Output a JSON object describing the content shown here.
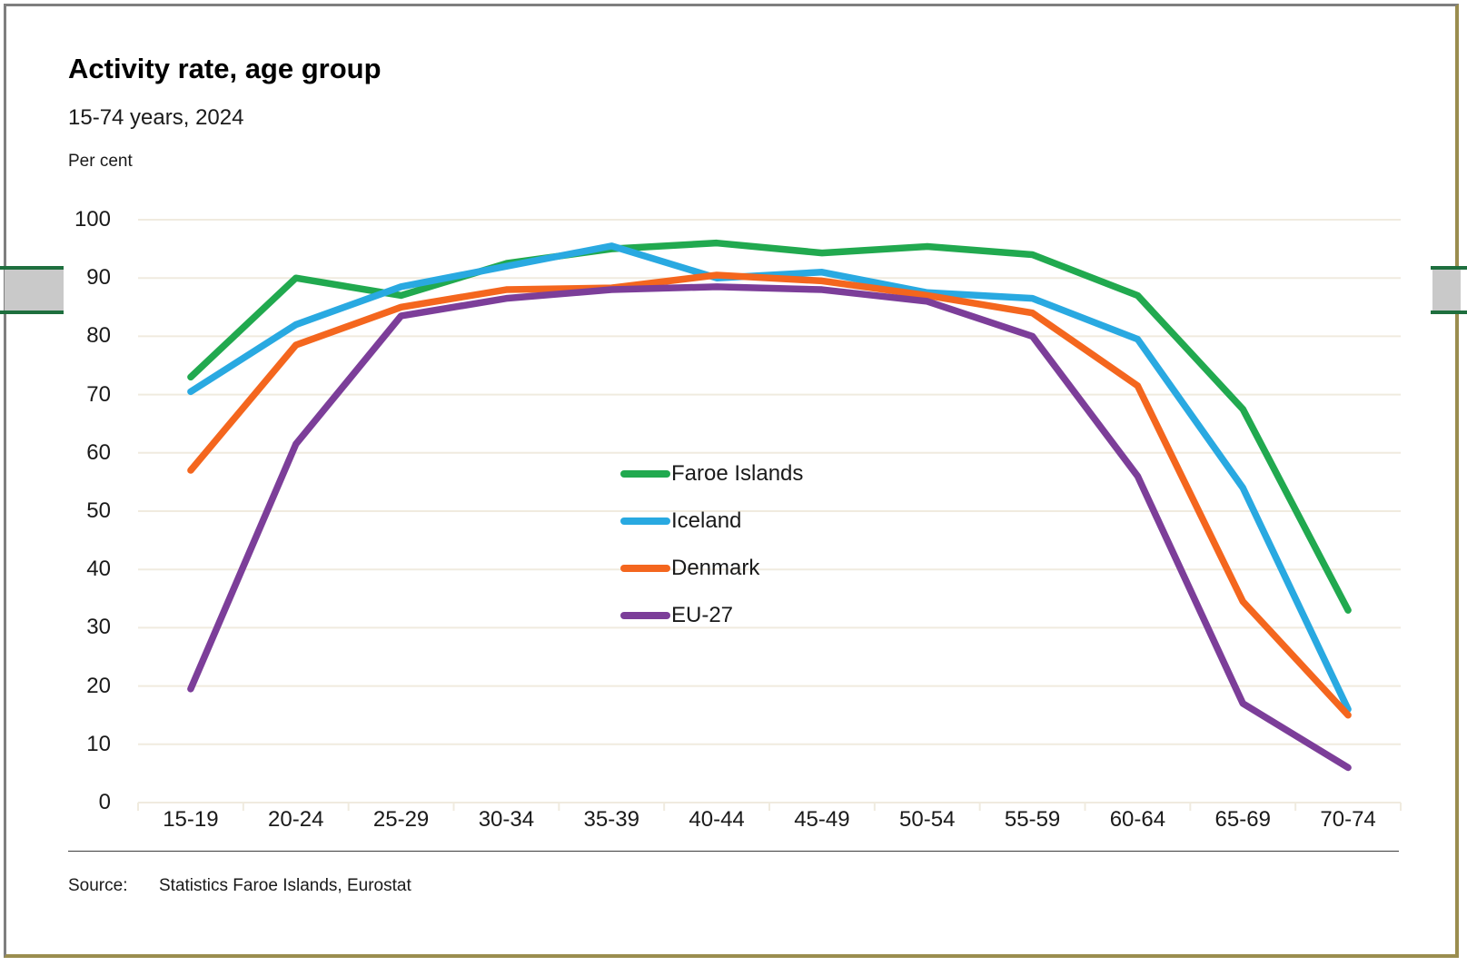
{
  "header": {
    "title": "Activity rate, age group",
    "subtitle": "15-74 years,  2024",
    "unit_label": "Per cent"
  },
  "footer": {
    "source_label": "Source:",
    "source_value": "Statistics Faroe Islands, Eurostat"
  },
  "chart_data": {
    "type": "line",
    "title": "Activity rate, age group",
    "subtitle": "15-74 years, 2024",
    "ylabel": "Per cent",
    "xlabel": "",
    "categories": [
      "15-19",
      "20-24",
      "25-29",
      "30-34",
      "35-39",
      "40-44",
      "45-49",
      "50-54",
      "55-59",
      "60-64",
      "65-69",
      "70-74"
    ],
    "series": [
      {
        "name": "Faroe Islands",
        "color": "#21a94f",
        "values": [
          73,
          90,
          87,
          92.5,
          95,
          96,
          94.3,
          95.4,
          94,
          87,
          67.5,
          33
        ]
      },
      {
        "name": "Iceland",
        "color": "#29a9e1",
        "values": [
          70.5,
          82,
          88.5,
          92,
          95.5,
          90,
          91,
          87.5,
          86.5,
          79.5,
          54,
          16
        ]
      },
      {
        "name": "Denmark",
        "color": "#f4661e",
        "values": [
          57,
          78.5,
          85,
          88,
          88.3,
          90.5,
          89.5,
          87,
          84,
          71.5,
          34.5,
          15
        ]
      },
      {
        "name": "EU-27",
        "color": "#7c3e99",
        "values": [
          19.5,
          61.5,
          83.5,
          86.5,
          88,
          88.5,
          88,
          86,
          80,
          56,
          17,
          6
        ]
      }
    ],
    "ylim": [
      0,
      100
    ],
    "ytick_step": 10,
    "grid": "horizontal",
    "legend_position": "inside-center-right"
  },
  "colors": {
    "grid": "#f0ebdf",
    "frame_gray": "#7f7f7f",
    "frame_olive": "#9a8d4f",
    "handle_fill": "#c9c9c9",
    "handle_line": "#1e6f3e",
    "text": "#1a1a1a"
  }
}
